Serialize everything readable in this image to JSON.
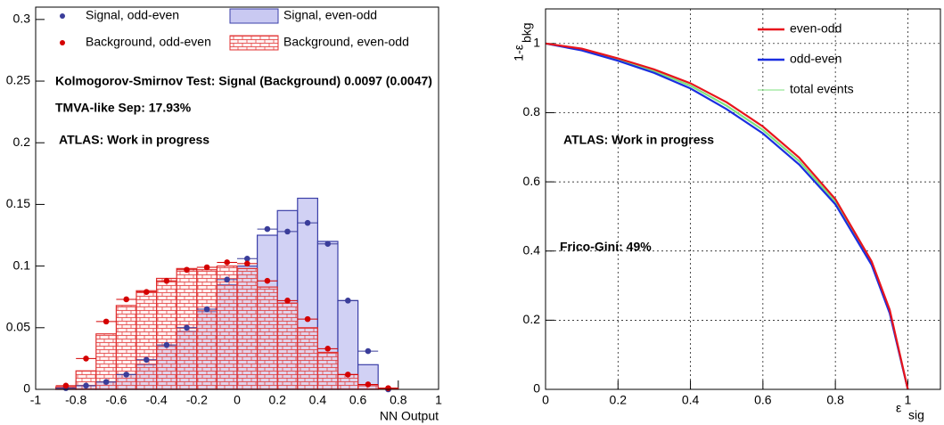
{
  "chart_data": [
    {
      "type": "histogram",
      "xlabel": "NN Output",
      "bins": [
        -0.9,
        -0.8,
        -0.7,
        -0.6,
        -0.5,
        -0.4,
        -0.3,
        -0.2,
        -0.1,
        0,
        0.1,
        0.2,
        0.3,
        0.4,
        0.5,
        0.6,
        0.7,
        0.8
      ],
      "series": [
        {
          "name": "Signal, odd-even",
          "color": "#3a3d9a",
          "style": "points",
          "values": [
            0.001,
            0.003,
            0.006,
            0.012,
            0.024,
            0.036,
            0.05,
            0.065,
            0.089,
            0.106,
            0.13,
            0.128,
            0.135,
            0.118,
            0.072,
            0.031,
            0
          ]
        },
        {
          "name": "Background, odd-even",
          "color": "#d40000",
          "style": "points",
          "values": [
            0.003,
            0.025,
            0.055,
            0.073,
            0.079,
            0.088,
            0.097,
            0.099,
            0.103,
            0.102,
            0.088,
            0.072,
            0.057,
            0.033,
            0.012,
            0.004,
            0.001
          ]
        },
        {
          "name": "Signal, even-odd",
          "color": "#3b3fa8",
          "fill": "#c9c9f2",
          "style": "filled",
          "values": [
            0.001,
            0.003,
            0.006,
            0.012,
            0.02,
            0.035,
            0.047,
            0.063,
            0.085,
            0.1,
            0.125,
            0.145,
            0.155,
            0.12,
            0.072,
            0.02,
            0
          ]
        },
        {
          "name": "Background, even-odd",
          "color": "#e03030",
          "style": "hatched",
          "values": [
            0.002,
            0.015,
            0.045,
            0.068,
            0.08,
            0.09,
            0.098,
            0.097,
            0.1,
            0.098,
            0.083,
            0.07,
            0.05,
            0.03,
            0.012,
            0.003,
            0.001
          ]
        }
      ],
      "xlim": [
        -1,
        1
      ],
      "xticks": [
        -1,
        -0.8,
        -0.6,
        -0.4,
        -0.2,
        0,
        0.2,
        0.4,
        0.6,
        0.8,
        1
      ],
      "ylim": [
        0,
        0.31
      ],
      "yticks": [
        0,
        0.05,
        0.1,
        0.15,
        0.2,
        0.25,
        0.3
      ],
      "grid": false,
      "annotations": [
        "Kolmogorov-Smirnov Test: Signal (Background) 0.0097 (0.0047)",
        "TMVA-like Sep: 17.93%",
        "ATLAS: Work in progress"
      ]
    },
    {
      "type": "line",
      "ylabel": "1-ε",
      "ylabel_sub": "bkg",
      "xlabel": "ε",
      "xlabel_sub": "sig",
      "x": [
        0,
        0.1,
        0.2,
        0.3,
        0.4,
        0.5,
        0.6,
        0.7,
        0.8,
        0.9,
        0.95,
        1
      ],
      "series": [
        {
          "name": "even-odd",
          "color": "#e8141c",
          "values": [
            1,
            0.985,
            0.957,
            0.925,
            0.885,
            0.83,
            0.76,
            0.67,
            0.55,
            0.37,
            0.23,
            0
          ]
        },
        {
          "name": "odd-even",
          "color": "#1a2ee0",
          "values": [
            1,
            0.98,
            0.95,
            0.915,
            0.87,
            0.81,
            0.74,
            0.65,
            0.535,
            0.36,
            0.22,
            0
          ]
        },
        {
          "name": "total events",
          "color": "#7de27d",
          "values": [
            1,
            0.982,
            0.953,
            0.92,
            0.878,
            0.82,
            0.75,
            0.66,
            0.542,
            0.365,
            0.225,
            0
          ]
        }
      ],
      "xlim": [
        0,
        1.09
      ],
      "xticks": [
        0,
        0.2,
        0.4,
        0.6,
        0.8,
        1
      ],
      "ylim": [
        0,
        1.1
      ],
      "yticks": [
        0,
        0.2,
        0.4,
        0.6,
        0.8,
        1
      ],
      "grid": true,
      "annotations": [
        "ATLAS: Work in progress",
        "Frico-Gini: 49%"
      ]
    }
  ]
}
